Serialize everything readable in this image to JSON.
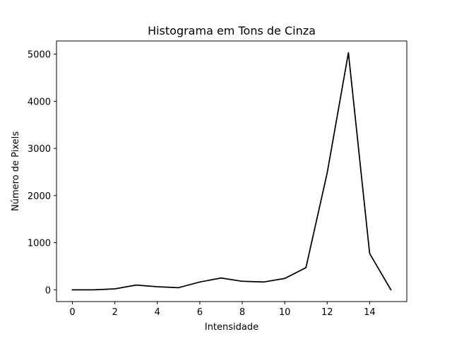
{
  "chart_data": {
    "type": "line",
    "title": "Histograma em Tons de Cinza",
    "xlabel": "Intensidade",
    "ylabel": "Número de Pixels",
    "x": [
      0,
      1,
      2,
      3,
      4,
      5,
      6,
      7,
      8,
      9,
      10,
      11,
      12,
      13,
      14,
      15
    ],
    "series": [
      {
        "values": [
          0,
          0,
          20,
          100,
          65,
          45,
          165,
          250,
          180,
          165,
          240,
          470,
          2480,
          5030,
          770,
          0
        ],
        "color": "#000000"
      }
    ],
    "xlim": [
      -0.75,
      15.75
    ],
    "ylim": [
      -250,
      5280
    ],
    "xticks": [
      0,
      2,
      4,
      6,
      8,
      10,
      12,
      14
    ],
    "yticks": [
      0,
      1000,
      2000,
      3000,
      4000,
      5000
    ],
    "grid": false,
    "legend": "none"
  }
}
